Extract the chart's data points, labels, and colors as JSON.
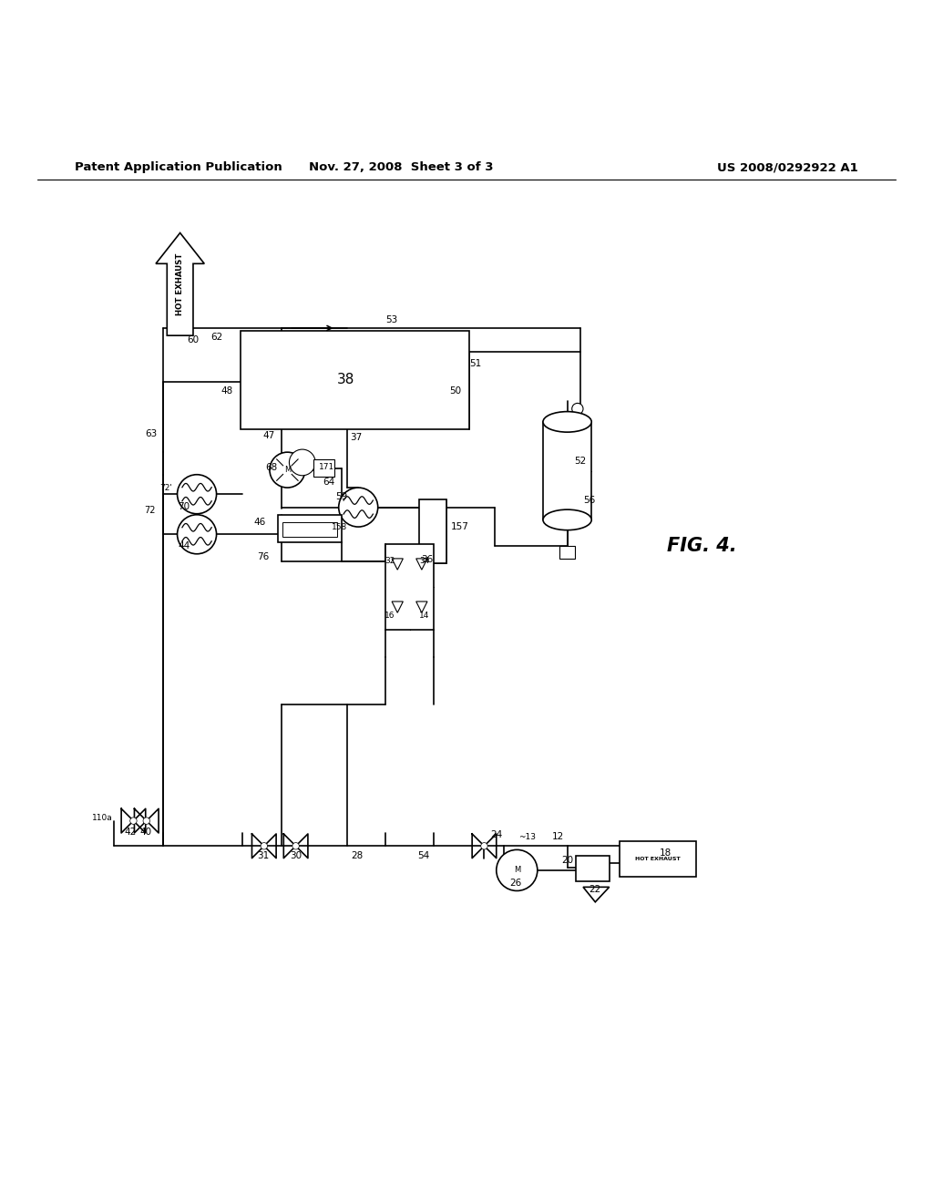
{
  "bg_color": "#ffffff",
  "line_color": "#000000",
  "header_left": "Patent Application Publication",
  "header_mid": "Nov. 27, 2008  Sheet 3 of 3",
  "header_right": "US 2008/0292922 A1",
  "fig_label": "FIG. 4."
}
